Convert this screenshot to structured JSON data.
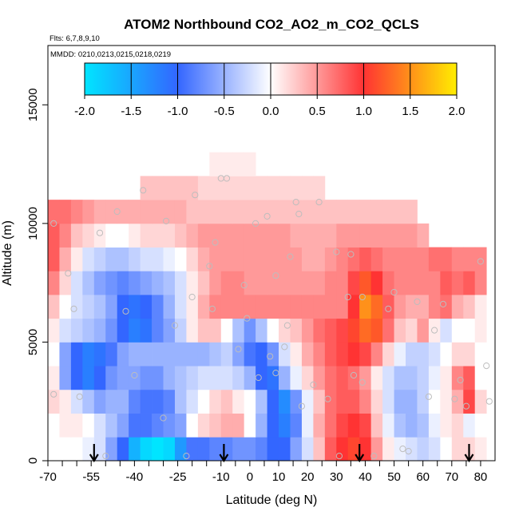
{
  "chart_data": {
    "type": "heatmap",
    "title": "ATOM2 Northbound CO2_AO2_m_CO2_QCLS",
    "flights_note": "Flts: 6,7,8,9,10",
    "dates_note": "MMDD: 0210,0213,0215,0218,0219",
    "xlabel": "Latitude (deg N)",
    "ylabel": "Altitude (m)",
    "xlim": [
      -70,
      85
    ],
    "ylim": [
      0,
      17500
    ],
    "x_ticks": [
      "-70",
      "-55",
      "-40",
      "-25",
      "-10",
      "0",
      "10",
      "20",
      "30",
      "40",
      "50",
      "60",
      "70",
      "80"
    ],
    "y_ticks": [
      "0",
      "5000",
      "10000",
      "15000"
    ],
    "colorbar": {
      "ticks": [
        "-2.0",
        "-1.5",
        "-1.0",
        "-0.5",
        "0.0",
        "0.5",
        "1.0",
        "1.5",
        "2.0"
      ],
      "range": [
        -2.0,
        2.0
      ],
      "colors": [
        "#00e5ff",
        "#3366ff",
        "#ffffff",
        "#ff3333",
        "#ffee00"
      ]
    },
    "latitudes": [
      -68,
      -64,
      -60,
      -56,
      -52,
      -48,
      -44,
      -40,
      -36,
      -32,
      -28,
      -24,
      -20,
      -16,
      -12,
      -8,
      -4,
      0,
      4,
      8,
      12,
      16,
      20,
      24,
      28,
      32,
      36,
      40,
      44,
      48,
      52,
      56,
      60,
      64,
      68,
      72,
      76,
      80
    ],
    "altitudes": [
      500,
      1500,
      2500,
      3500,
      4500,
      5500,
      6500,
      7500,
      8500,
      9500,
      10500,
      11500,
      12500
    ],
    "grid": [
      [
        null,
        null,
        null,
        -0.1,
        -0.2,
        -0.6,
        -1.0,
        -1.6,
        -1.9,
        -2.0,
        -1.9,
        -1.4,
        -0.9,
        -0.9,
        -0.8,
        -0.8,
        -0.7,
        -0.7,
        -0.8,
        -1.0,
        -1.0,
        -0.6,
        -0.2,
        0.3,
        0.8,
        1.0,
        1.1,
        1.0,
        0.5,
        0.1,
        -0.1,
        -0.2,
        -0.3,
        -0.2,
        0.0,
        0.2,
        0.2,
        0.1
      ],
      [
        null,
        0.1,
        0.1,
        0.0,
        -0.2,
        -0.4,
        -0.6,
        -0.9,
        -0.9,
        -0.8,
        -0.7,
        -0.6,
        0.0,
        0.2,
        0.3,
        0.4,
        0.4,
        0.0,
        -0.5,
        -1.0,
        -1.2,
        -0.8,
        -0.1,
        0.4,
        0.7,
        0.9,
        1.0,
        0.9,
        0.3,
        -0.1,
        -0.4,
        -0.5,
        -0.4,
        -0.1,
        0.1,
        0.2,
        -0.1,
        0.0
      ],
      [
        0.2,
        0.1,
        -0.2,
        -0.4,
        -0.6,
        -0.5,
        -0.5,
        -0.8,
        -0.9,
        -0.9,
        -0.8,
        -0.4,
        -0.2,
        0.0,
        0.2,
        0.3,
        0.1,
        0.0,
        -0.4,
        -1.0,
        -1.3,
        -0.7,
        -0.1,
        0.3,
        0.7,
        0.8,
        0.8,
        0.6,
        0.2,
        -0.2,
        -0.5,
        -0.5,
        -0.3,
        0.0,
        0.1,
        0.4,
        0.9,
        0.2
      ],
      [
        0.1,
        -0.6,
        -1.0,
        -1.2,
        -1.0,
        -0.7,
        -0.6,
        -0.6,
        -0.7,
        -0.7,
        -0.5,
        -0.4,
        -0.3,
        -0.2,
        -0.2,
        -0.2,
        -0.3,
        -0.5,
        -1.0,
        -1.1,
        -0.5,
        -0.1,
        0.2,
        0.5,
        0.7,
        0.8,
        0.7,
        0.5,
        0.1,
        -0.2,
        -0.4,
        -0.4,
        -0.3,
        -0.1,
        0.1,
        0.6,
        0.8,
        0.0
      ],
      [
        0.0,
        -0.6,
        -1.0,
        -1.2,
        -1.1,
        -0.9,
        -0.6,
        -0.5,
        -0.5,
        -0.5,
        -0.5,
        -0.5,
        -0.5,
        -0.5,
        -0.4,
        -0.3,
        -0.6,
        -0.9,
        -1.0,
        -0.7,
        -0.2,
        0.1,
        0.4,
        0.6,
        0.8,
        0.9,
        1.0,
        0.9,
        0.6,
        0.2,
        -0.1,
        -0.3,
        -0.3,
        -0.2,
        0.0,
        0.2,
        0.2,
        0.0
      ],
      [
        0.1,
        -0.2,
        -0.3,
        -0.4,
        -0.5,
        -0.7,
        -1.0,
        -1.2,
        -1.1,
        -0.8,
        -0.6,
        -0.3,
        0.1,
        0.3,
        0.3,
        0.0,
        -0.4,
        -0.7,
        -0.4,
        0.0,
        0.2,
        0.3,
        0.5,
        0.7,
        0.8,
        0.9,
        1.1,
        1.3,
        1.2,
        0.7,
        0.3,
        0.2,
        0.5,
        0.1,
        -0.2,
        0.0,
        0.0,
        0.1
      ],
      [
        0.3,
        0.0,
        -0.2,
        -0.3,
        -0.4,
        -0.6,
        -1.0,
        -1.1,
        -1.0,
        -0.8,
        -0.5,
        -0.2,
        0.1,
        0.4,
        0.6,
        0.6,
        0.6,
        0.6,
        0.6,
        0.6,
        0.6,
        0.6,
        0.6,
        0.6,
        0.6,
        0.6,
        1.0,
        1.5,
        1.3,
        0.8,
        0.5,
        0.4,
        0.4,
        0.6,
        0.7,
        0.4,
        0.3,
        0.1
      ],
      [
        0.6,
        0.2,
        -0.2,
        -0.4,
        -0.6,
        -0.7,
        -0.8,
        -0.7,
        -0.6,
        -0.5,
        -0.4,
        -0.2,
        0.1,
        0.3,
        0.5,
        0.6,
        0.6,
        0.5,
        0.5,
        0.5,
        0.5,
        0.5,
        0.5,
        0.5,
        0.6,
        0.6,
        0.9,
        1.2,
        1.0,
        0.7,
        0.6,
        0.6,
        0.6,
        0.6,
        0.8,
        0.7,
        0.8,
        0.6
      ],
      [
        0.8,
        0.4,
        0.1,
        -0.2,
        -0.3,
        -0.4,
        -0.4,
        -0.3,
        -0.2,
        -0.2,
        -0.1,
        0.0,
        0.2,
        0.4,
        0.5,
        0.5,
        0.5,
        0.5,
        0.5,
        0.5,
        0.5,
        0.5,
        0.4,
        0.4,
        0.5,
        0.6,
        0.7,
        0.8,
        0.7,
        0.6,
        0.6,
        0.6,
        0.6,
        0.7,
        0.7,
        0.6,
        0.6,
        0.6
      ],
      [
        0.8,
        0.6,
        0.3,
        0.2,
        0.1,
        0.0,
        0.0,
        0.1,
        0.2,
        0.2,
        0.2,
        0.3,
        0.4,
        0.5,
        0.5,
        0.5,
        0.5,
        0.5,
        0.5,
        0.5,
        0.5,
        0.4,
        0.4,
        0.4,
        0.4,
        0.5,
        0.5,
        0.5,
        0.5,
        0.5,
        0.5,
        0.5,
        0.4,
        null,
        null,
        null,
        null,
        null
      ],
      [
        0.7,
        0.7,
        0.6,
        0.5,
        0.4,
        0.4,
        0.4,
        0.4,
        0.4,
        0.4,
        0.4,
        0.4,
        0.3,
        0.3,
        0.3,
        0.3,
        0.3,
        0.3,
        0.3,
        0.3,
        0.3,
        0.3,
        0.3,
        0.3,
        0.3,
        0.3,
        0.3,
        0.3,
        0.3,
        0.3,
        0.3,
        0.3,
        null,
        null,
        null,
        null,
        null,
        null
      ],
      [
        null,
        null,
        null,
        null,
        null,
        null,
        null,
        null,
        0.3,
        0.3,
        0.3,
        0.3,
        0.3,
        0.2,
        0.2,
        0.2,
        0.2,
        0.2,
        0.2,
        0.2,
        0.2,
        0.2,
        0.2,
        0.2,
        null,
        null,
        null,
        null,
        null,
        null,
        null,
        null,
        null,
        null,
        null,
        null,
        null,
        null
      ],
      [
        null,
        null,
        null,
        null,
        null,
        null,
        null,
        null,
        null,
        null,
        null,
        null,
        null,
        null,
        0.1,
        0.1,
        0.1,
        0.1,
        null,
        null,
        null,
        null,
        null,
        null,
        null,
        null,
        null,
        null,
        null,
        null,
        null,
        null,
        null,
        null,
        null,
        null,
        null,
        null
      ]
    ],
    "sample_points": [
      [
        -68,
        10000
      ],
      [
        -68,
        2800
      ],
      [
        -63,
        7900
      ],
      [
        -61,
        6400
      ],
      [
        -59,
        2700
      ],
      [
        -52,
        9600
      ],
      [
        -46,
        10500
      ],
      [
        -43,
        6300
      ],
      [
        -40,
        3600
      ],
      [
        -30,
        1800
      ],
      [
        -26,
        5700
      ],
      [
        -19,
        11200
      ],
      [
        -14,
        8200
      ],
      [
        -13,
        6400
      ],
      [
        -12,
        9200
      ],
      [
        -10,
        11900
      ],
      [
        -8,
        11900
      ],
      [
        -4,
        4700
      ],
      [
        -2,
        7400
      ],
      [
        -1,
        6000
      ],
      [
        2,
        10000
      ],
      [
        3,
        3500
      ],
      [
        6,
        10300
      ],
      [
        7,
        4400
      ],
      [
        9,
        7800
      ],
      [
        9,
        3700
      ],
      [
        12,
        4800
      ],
      [
        13,
        5700
      ],
      [
        14,
        8600
      ],
      [
        16,
        10900
      ],
      [
        17,
        10400
      ],
      [
        18,
        2300
      ],
      [
        22,
        3200
      ],
      [
        24,
        10900
      ],
      [
        27,
        2600
      ],
      [
        30,
        8800
      ],
      [
        31,
        200
      ],
      [
        34,
        6900
      ],
      [
        35,
        8700
      ],
      [
        36,
        3600
      ],
      [
        39,
        6900
      ],
      [
        39,
        3300
      ],
      [
        43,
        200
      ],
      [
        48,
        6400
      ],
      [
        50,
        7100
      ],
      [
        53,
        500
      ],
      [
        55,
        400
      ],
      [
        58,
        6700
      ],
      [
        62,
        2700
      ],
      [
        64,
        5500
      ],
      [
        67,
        6600
      ],
      [
        71,
        2600
      ],
      [
        73,
        3400
      ],
      [
        75,
        2300
      ],
      [
        80,
        8400
      ],
      [
        82,
        4000
      ],
      [
        83,
        2500
      ],
      [
        -37,
        11400
      ],
      [
        -29,
        10100
      ],
      [
        -20,
        6900
      ],
      [
        -22,
        200
      ],
      [
        -50,
        200
      ]
    ],
    "arrows_x": [
      -54,
      -9,
      38,
      76
    ]
  }
}
